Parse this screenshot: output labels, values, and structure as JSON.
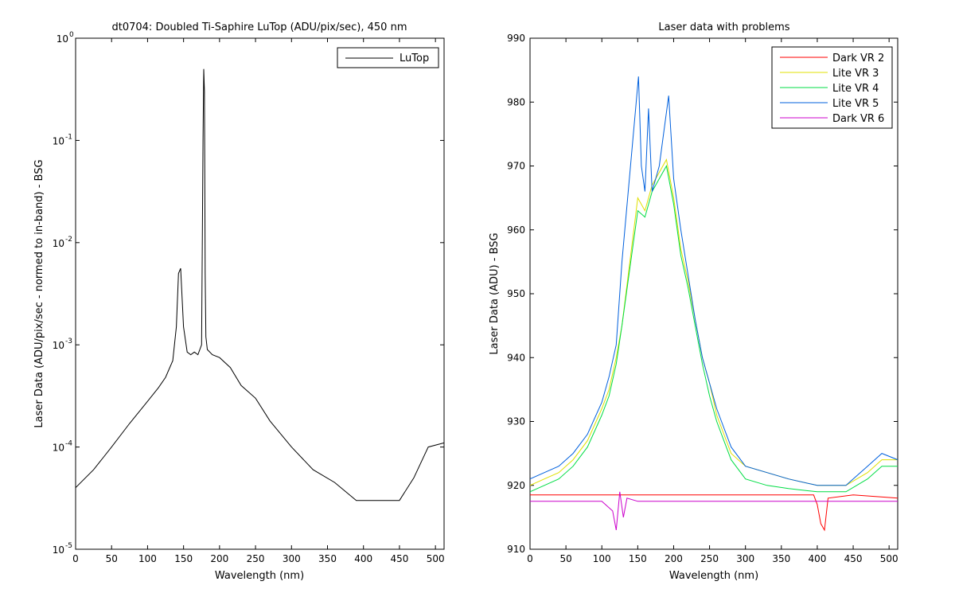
{
  "chart_data": [
    {
      "type": "line",
      "title": "dt0704: Doubled Ti-Saphire LuTop (ADU/pix/sec), 450 nm",
      "xlabel": "Wavelength (nm)",
      "ylabel": "Laser Data (ADU/pix/sec - normed to in-band) - BSG",
      "xlim": [
        0,
        512
      ],
      "ylim": [
        1e-05,
        1
      ],
      "yscale": "log",
      "grid": false,
      "legend_position": "top-right",
      "x_ticks": [
        0,
        50,
        100,
        150,
        200,
        250,
        300,
        350,
        400,
        450,
        500
      ],
      "y_ticks": [
        {
          "value": 1,
          "base": "10",
          "exp": "0"
        },
        {
          "value": 0.1,
          "base": "10",
          "exp": "-1"
        },
        {
          "value": 0.01,
          "base": "10",
          "exp": "-2"
        },
        {
          "value": 0.001,
          "base": "10",
          "exp": "-3"
        },
        {
          "value": 0.0001,
          "base": "10",
          "exp": "-4"
        },
        {
          "value": 1e-05,
          "base": "10",
          "exp": "-5"
        }
      ],
      "series": [
        {
          "name": "LuTop",
          "color": "#000000",
          "x": [
            0,
            25,
            50,
            75,
            100,
            115,
            125,
            135,
            140,
            143,
            146,
            150,
            155,
            160,
            165,
            170,
            175,
            177,
            178,
            179,
            180,
            181,
            183,
            190,
            200,
            215,
            230,
            250,
            270,
            300,
            330,
            360,
            390,
            420,
            450,
            470,
            490,
            512
          ],
          "y": [
            4e-05,
            6e-05,
            0.0001,
            0.00017,
            0.00028,
            0.00038,
            0.00048,
            0.0007,
            0.0015,
            0.005,
            0.0056,
            0.0015,
            0.00085,
            0.0008,
            0.00085,
            0.0008,
            0.001,
            0.1,
            0.5,
            0.3,
            0.005,
            0.0012,
            0.0009,
            0.0008,
            0.00075,
            0.0006,
            0.0004,
            0.0003,
            0.00018,
            0.0001,
            6e-05,
            4.5e-05,
            3e-05,
            3e-05,
            3e-05,
            5e-05,
            0.0001,
            0.00011
          ]
        }
      ]
    },
    {
      "type": "line",
      "title": "Laser data with problems",
      "xlabel": "Wavelength (nm)",
      "ylabel": "Laser Data (ADU) - BSG",
      "xlim": [
        0,
        512
      ],
      "ylim": [
        910,
        990
      ],
      "grid": false,
      "legend_position": "top-right",
      "x_ticks": [
        0,
        50,
        100,
        150,
        200,
        250,
        300,
        350,
        400,
        450,
        500
      ],
      "y_ticks": [
        910,
        920,
        930,
        940,
        950,
        960,
        970,
        980,
        990
      ],
      "series": [
        {
          "name": "Dark VR 2",
          "color": "#ff0000",
          "x": [
            0,
            50,
            100,
            150,
            200,
            250,
            300,
            350,
            395,
            400,
            405,
            410,
            415,
            450,
            512
          ],
          "y": [
            918.5,
            918.5,
            918.5,
            918.5,
            918.5,
            918.5,
            918.5,
            918.5,
            918.5,
            917,
            914,
            913,
            918,
            918.5,
            918
          ]
        },
        {
          "name": "Lite VR 3",
          "color": "#e0e000",
          "x": [
            0,
            20,
            40,
            60,
            80,
            100,
            110,
            120,
            128,
            150,
            160,
            170,
            190,
            200,
            210,
            220,
            230,
            240,
            250,
            260,
            270,
            280,
            300,
            330,
            360,
            400,
            440,
            470,
            490,
            512
          ],
          "y": [
            920,
            921,
            922,
            924,
            927,
            932,
            935,
            940,
            945,
            965,
            963,
            967,
            971,
            965,
            957,
            952,
            946,
            940,
            936,
            931,
            928,
            925,
            923,
            922,
            921,
            920,
            920,
            922,
            924,
            924
          ]
        },
        {
          "name": "Lite VR 4",
          "color": "#00dd44",
          "x": [
            0,
            20,
            40,
            60,
            80,
            100,
            110,
            120,
            128,
            150,
            160,
            170,
            190,
            200,
            210,
            220,
            230,
            240,
            250,
            260,
            270,
            280,
            300,
            330,
            360,
            400,
            440,
            470,
            490,
            512
          ],
          "y": [
            919,
            920,
            921,
            923,
            926,
            931,
            934,
            939,
            945,
            963,
            962,
            966,
            970,
            964,
            956,
            951,
            945,
            939,
            934,
            930,
            927,
            924,
            921,
            920,
            919.5,
            919,
            919,
            921,
            923,
            923
          ]
        },
        {
          "name": "Lite VR 5",
          "color": "#0060dd",
          "x": [
            0,
            20,
            40,
            60,
            80,
            100,
            110,
            120,
            128,
            151,
            155,
            160,
            165,
            170,
            180,
            193,
            200,
            210,
            220,
            230,
            240,
            250,
            260,
            270,
            280,
            300,
            330,
            360,
            400,
            440,
            470,
            490,
            512
          ],
          "y": [
            921,
            922,
            923,
            925,
            928,
            933,
            937,
            942,
            955,
            984,
            970,
            966,
            979,
            966,
            970,
            981,
            968,
            960,
            953,
            946,
            940,
            936,
            932,
            929,
            926,
            923,
            922,
            921,
            920,
            920,
            923,
            925,
            924
          ]
        },
        {
          "name": "Dark VR 6",
          "color": "#cc00cc",
          "x": [
            0,
            50,
            100,
            115,
            120,
            125,
            130,
            135,
            150,
            200,
            250,
            300,
            350,
            400,
            450,
            512
          ],
          "y": [
            917.5,
            917.5,
            917.5,
            916,
            913,
            919,
            915,
            918,
            917.5,
            917.5,
            917.5,
            917.5,
            917.5,
            917.5,
            917.5,
            917.5
          ]
        }
      ]
    }
  ]
}
